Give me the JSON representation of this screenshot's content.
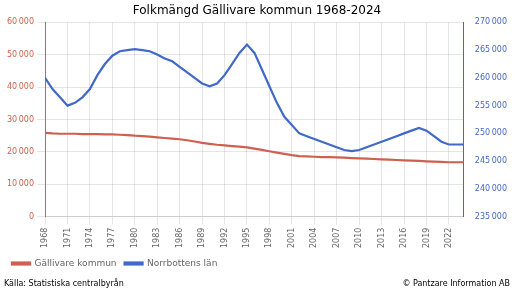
{
  "chart_data": {
    "type": "line",
    "title": "Folkmängd Gällivare kommun 1968-2024",
    "annotations": [
      "Källa: Statistiska centralbyrån",
      "© Pantzare Information AB"
    ],
    "x": [
      1968,
      1969,
      1970,
      1971,
      1972,
      1973,
      1974,
      1975,
      1976,
      1977,
      1978,
      1979,
      1980,
      1981,
      1982,
      1983,
      1984,
      1985,
      1986,
      1987,
      1988,
      1989,
      1990,
      1991,
      1992,
      1993,
      1994,
      1995,
      1996,
      1997,
      1998,
      1999,
      2000,
      2001,
      2002,
      2003,
      2004,
      2005,
      2006,
      2007,
      2008,
      2009,
      2010,
      2011,
      2012,
      2013,
      2014,
      2015,
      2016,
      2017,
      2018,
      2019,
      2020,
      2021,
      2022,
      2023,
      2024
    ],
    "series": [
      {
        "name": "Gällivare kommun",
        "color": "#cd6050",
        "values": [
          25900,
          25700,
          25600,
          25600,
          25600,
          25500,
          25500,
          25500,
          25400,
          25400,
          25300,
          25200,
          25000,
          24900,
          24700,
          24500,
          24300,
          24100,
          23900,
          23600,
          23200,
          22800,
          22500,
          22200,
          22000,
          21800,
          21600,
          21400,
          21000,
          20600,
          20200,
          19800,
          19400,
          19000,
          18700,
          18600,
          18500,
          18400,
          18400,
          18300,
          18200,
          18100,
          18000,
          17900,
          17800,
          17700,
          17600,
          17500,
          17400,
          17300,
          17200,
          17100,
          17000,
          16900,
          16800,
          16800,
          16800
        ]
      },
      {
        "name": "Norrbottens län",
        "color": "#4169c8",
        "axis": "y2",
        "values": [
          260000,
          258000,
          256500,
          255000,
          255500,
          256500,
          258000,
          260500,
          262500,
          264000,
          264800,
          265000,
          265200,
          265000,
          264800,
          264200,
          263500,
          263000,
          262000,
          261000,
          260000,
          259000,
          258500,
          259000,
          260500,
          262500,
          264500,
          266000,
          264500,
          261500,
          258500,
          255500,
          253000,
          251500,
          250000,
          249500,
          249000,
          248500,
          248000,
          247500,
          247000,
          246800,
          247000,
          247500,
          248000,
          248500,
          249000,
          249500,
          250000,
          250500,
          251000,
          250500,
          249500,
          248500,
          248000,
          248000,
          248000
        ]
      }
    ],
    "xlim": [
      1968,
      2024
    ],
    "xticks": [
      1968,
      1971,
      1974,
      1977,
      1980,
      1983,
      1986,
      1989,
      1992,
      1995,
      1998,
      2001,
      2004,
      2007,
      2010,
      2013,
      2016,
      2019,
      2022
    ],
    "ylim": [
      0,
      60000
    ],
    "yticks": [
      0,
      {
        "value": 10000,
        "label": "10 000"
      },
      {
        "value": 20000,
        "label": "20 000"
      },
      {
        "value": 30000,
        "label": "30 000"
      },
      {
        "value": 40000,
        "label": "40 000"
      },
      {
        "value": 50000,
        "label": "50 000"
      },
      {
        "value": 60000,
        "label": "60 000"
      }
    ],
    "y2lim": [
      235000,
      270000
    ],
    "y2ticks": [
      {
        "value": 235000,
        "label": "235 000"
      },
      {
        "value": 240000,
        "label": "240 000"
      },
      {
        "value": 245000,
        "label": "245 000"
      },
      {
        "value": 250000,
        "label": "250 000"
      },
      {
        "value": 255000,
        "label": "255 000"
      },
      {
        "value": 260000,
        "label": "260 000"
      },
      {
        "value": 265000,
        "label": "265 000"
      },
      {
        "value": 270000,
        "label": "270 000"
      }
    ],
    "grid": true,
    "legend": "lower left"
  }
}
